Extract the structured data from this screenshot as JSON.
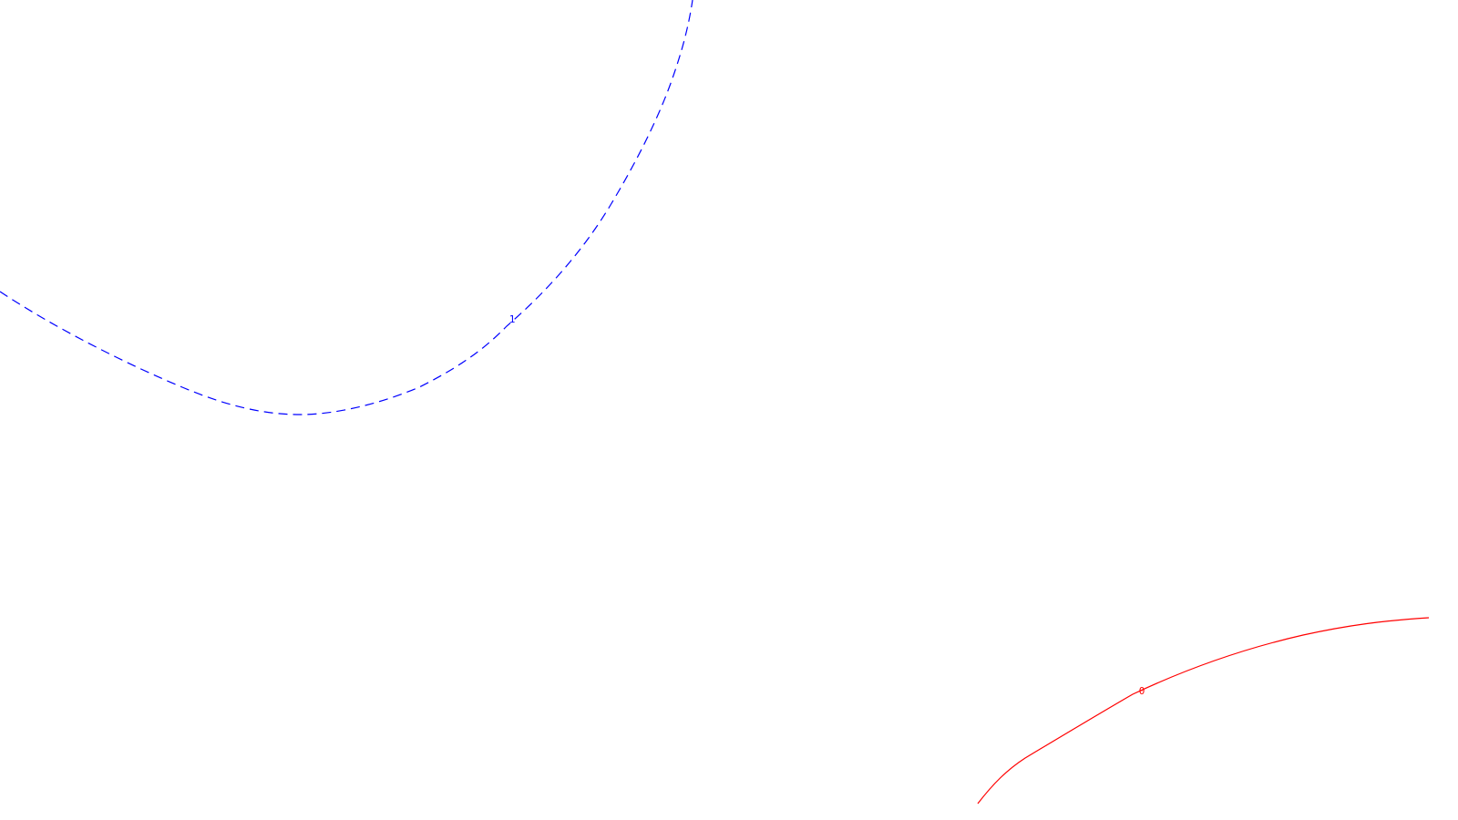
{
  "contours": [
    {
      "id": "contour-1",
      "label": "1",
      "color": "#0000ff",
      "style": "dashed"
    },
    {
      "id": "contour-0",
      "label": "0",
      "color": "#ff0000",
      "style": "solid"
    }
  ]
}
